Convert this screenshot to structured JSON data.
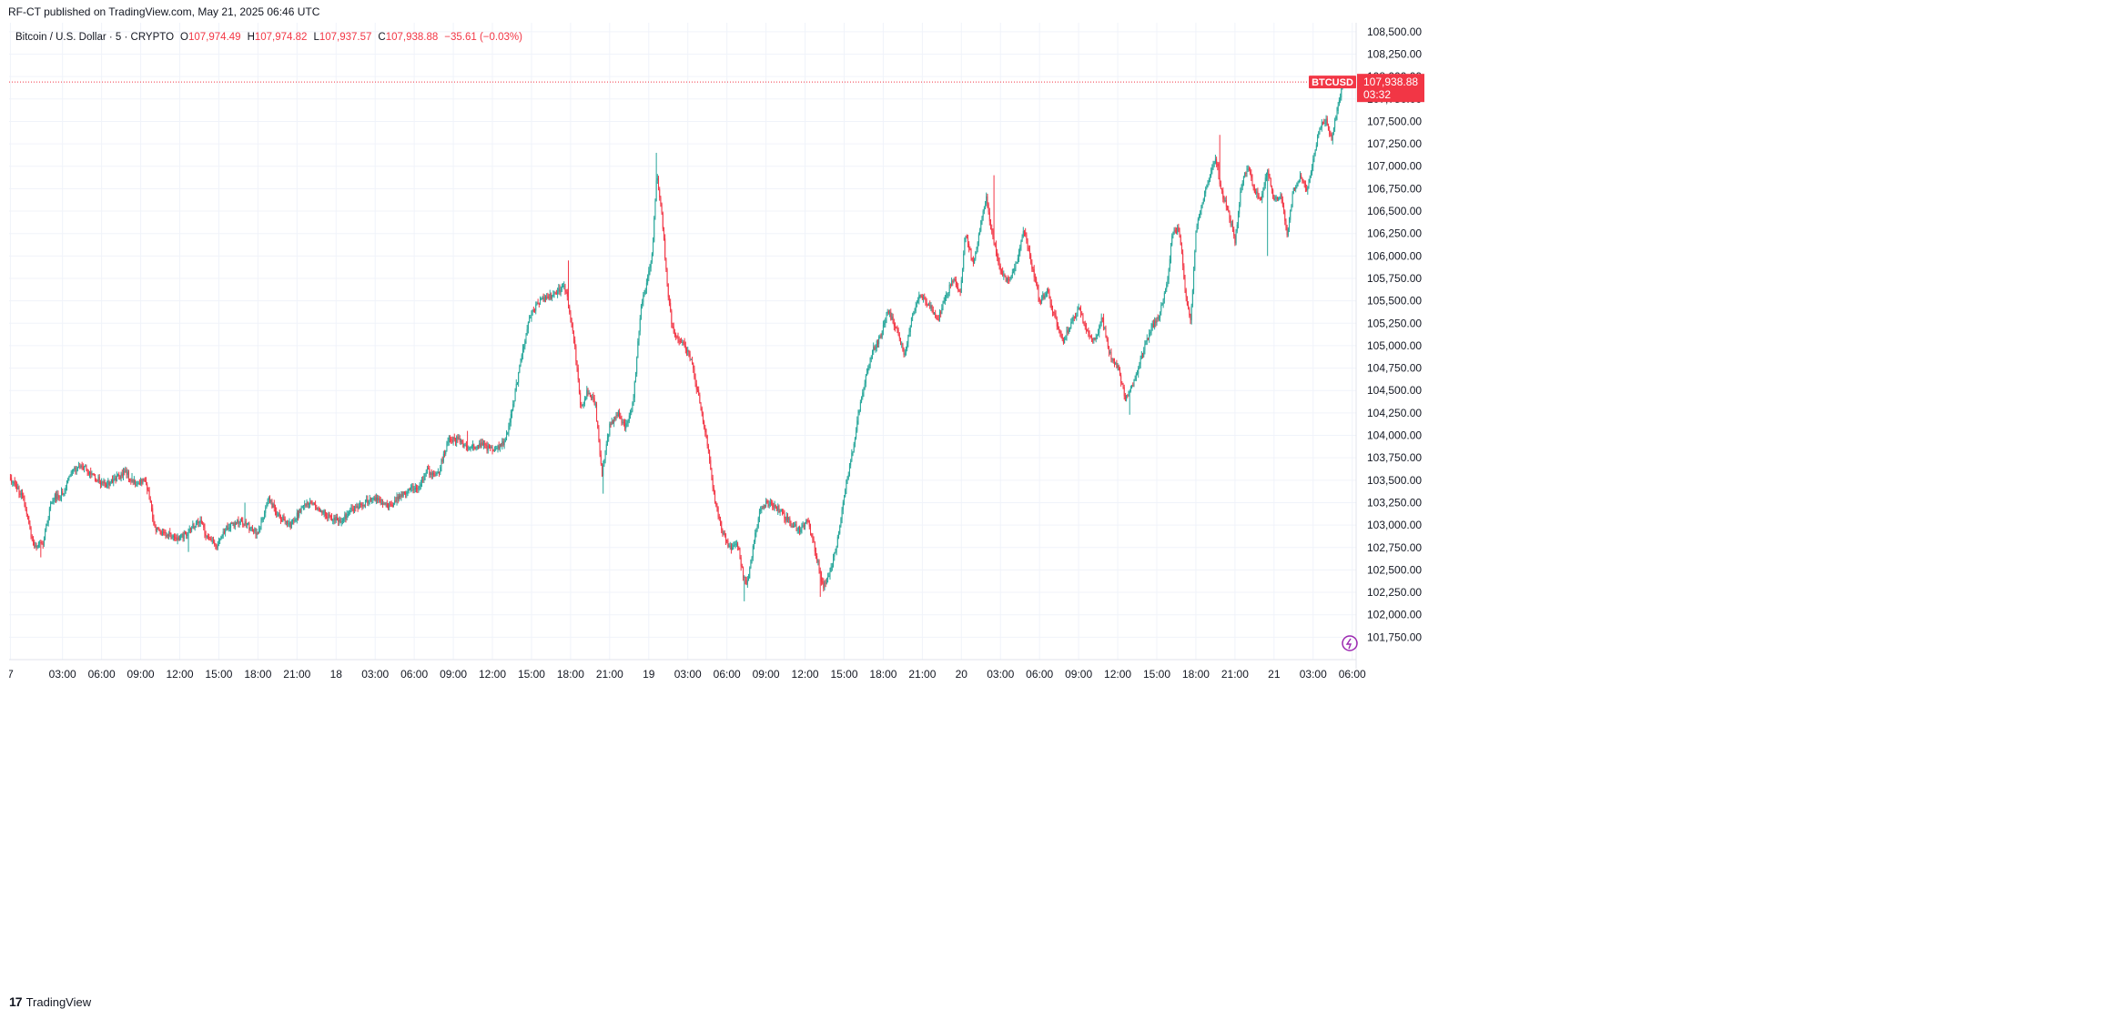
{
  "header": {
    "publish_text": "RF-CT published on TradingView.com, May 21, 2025 06:46 UTC"
  },
  "legend": {
    "instrument": "Bitcoin / U.S. Dollar · 5 · CRYPTO",
    "open_label": "O",
    "open_value": "107,974.49",
    "high_label": "H",
    "high_value": "107,974.82",
    "low_label": "L",
    "low_value": "107,937.57",
    "close_label": "C",
    "close_value": "107,938.88",
    "change_text": "−35.61 (−0.03%)"
  },
  "price_tag": {
    "symbol": "BTCUSD",
    "price": "107,938.88",
    "countdown": "03:32"
  },
  "footer": {
    "brand": "TradingView",
    "logo_icon": "tradingview-logo-icon"
  },
  "colors": {
    "up": "#26a69a",
    "down": "#f23645",
    "grid": "#f0f3fa",
    "text": "#131722"
  },
  "chart_data": {
    "type": "candlestick",
    "title": "Bitcoin / U.S. Dollar · 5 · CRYPTO",
    "ylim": [
      101500,
      108600
    ],
    "y_ticks": [
      101750,
      102000,
      102250,
      102500,
      102750,
      103000,
      103250,
      103500,
      103750,
      104000,
      104250,
      104500,
      104750,
      105000,
      105250,
      105500,
      105750,
      106000,
      106250,
      106500,
      106750,
      107000,
      107250,
      107500,
      107750,
      108000,
      108250,
      108500
    ],
    "y_tick_labels": [
      "101,750.00",
      "102,000.00",
      "102,250.00",
      "102,500.00",
      "102,750.00",
      "103,000.00",
      "103,250.00",
      "103,500.00",
      "103,750.00",
      "104,000.00",
      "104,250.00",
      "104,500.00",
      "104,750.00",
      "105,000.00",
      "105,250.00",
      "105,500.00",
      "105,750.00",
      "106,000.00",
      "106,250.00",
      "106,500.00",
      "106,750.00",
      "107,000.00",
      "107,250.00",
      "107,500.00",
      "107,750.00",
      "108,000.00",
      "108,250.00",
      "108,500.00"
    ],
    "x_labels": [
      "7",
      "03:00",
      "06:00",
      "09:00",
      "12:00",
      "15:00",
      "18:00",
      "21:00",
      "18",
      "03:00",
      "06:00",
      "09:00",
      "12:00",
      "15:00",
      "18:00",
      "21:00",
      "19",
      "03:00",
      "06:00",
      "09:00",
      "12:00",
      "15:00",
      "18:00",
      "21:00",
      "20",
      "03:00",
      "06:00",
      "09:00",
      "12:00",
      "15:00",
      "18:00",
      "21:00",
      "21",
      "03:00",
      "06:00"
    ],
    "x_hours": [
      -1,
      3,
      6,
      9,
      12,
      15,
      18,
      21,
      24,
      27,
      30,
      33,
      36,
      39,
      42,
      45,
      48,
      51,
      54,
      57,
      60,
      63,
      66,
      69,
      72,
      75,
      78,
      81,
      84,
      87,
      90,
      93,
      96,
      99,
      102
    ],
    "x_range_hours": [
      -1.1,
      102.3
    ],
    "bar_interval_minutes": 5,
    "anchors": [
      [
        -1.0,
        103530
      ],
      [
        0.0,
        103300
      ],
      [
        0.8,
        102750
      ],
      [
        1.5,
        102800
      ],
      [
        2.2,
        103300
      ],
      [
        3.0,
        103350
      ],
      [
        3.8,
        103600
      ],
      [
        4.6,
        103650
      ],
      [
        5.4,
        103550
      ],
      [
        6.2,
        103450
      ],
      [
        7.0,
        103500
      ],
      [
        7.8,
        103600
      ],
      [
        8.6,
        103450
      ],
      [
        9.4,
        103500
      ],
      [
        10.1,
        102950
      ],
      [
        11.0,
        102900
      ],
      [
        12.0,
        102850
      ],
      [
        12.8,
        102950
      ],
      [
        13.5,
        103050
      ],
      [
        14.2,
        102850
      ],
      [
        14.8,
        102750
      ],
      [
        15.5,
        102950
      ],
      [
        16.5,
        103050
      ],
      [
        17.2,
        103000
      ],
      [
        18.0,
        102900
      ],
      [
        18.8,
        103300
      ],
      [
        19.6,
        103100
      ],
      [
        20.5,
        103000
      ],
      [
        21.2,
        103150
      ],
      [
        22.0,
        103250
      ],
      [
        22.6,
        103200
      ],
      [
        23.4,
        103100
      ],
      [
        24.4,
        103050
      ],
      [
        25.4,
        103200
      ],
      [
        26.3,
        103250
      ],
      [
        27.2,
        103300
      ],
      [
        28.0,
        103200
      ],
      [
        28.8,
        103300
      ],
      [
        29.6,
        103400
      ],
      [
        30.2,
        103400
      ],
      [
        31.0,
        103600
      ],
      [
        31.8,
        103550
      ],
      [
        32.6,
        103950
      ],
      [
        33.4,
        103950
      ],
      [
        34.2,
        103850
      ],
      [
        35.0,
        103900
      ],
      [
        35.7,
        103850
      ],
      [
        36.3,
        103850
      ],
      [
        37.0,
        103950
      ],
      [
        37.6,
        104350
      ],
      [
        38.2,
        104850
      ],
      [
        38.8,
        105300
      ],
      [
        39.6,
        105500
      ],
      [
        40.4,
        105550
      ],
      [
        41.0,
        105600
      ],
      [
        41.6,
        105650
      ],
      [
        42.2,
        105150
      ],
      [
        42.8,
        104300
      ],
      [
        43.3,
        104500
      ],
      [
        43.9,
        104350
      ],
      [
        44.4,
        103550
      ],
      [
        45.0,
        104100
      ],
      [
        45.6,
        104250
      ],
      [
        46.2,
        104100
      ],
      [
        46.8,
        104350
      ],
      [
        47.4,
        105450
      ],
      [
        48.0,
        105800
      ],
      [
        48.3,
        106100
      ],
      [
        48.6,
        106900
      ],
      [
        49.0,
        106500
      ],
      [
        49.4,
        105700
      ],
      [
        49.8,
        105200
      ],
      [
        50.3,
        105050
      ],
      [
        50.8,
        105000
      ],
      [
        51.3,
        104800
      ],
      [
        51.8,
        104450
      ],
      [
        52.4,
        104000
      ],
      [
        53.0,
        103350
      ],
      [
        53.6,
        102950
      ],
      [
        54.2,
        102750
      ],
      [
        54.8,
        102800
      ],
      [
        55.3,
        102400
      ],
      [
        55.6,
        102350
      ],
      [
        56.1,
        102850
      ],
      [
        56.6,
        103200
      ],
      [
        57.2,
        103250
      ],
      [
        57.8,
        103200
      ],
      [
        58.4,
        103100
      ],
      [
        59.0,
        103000
      ],
      [
        59.6,
        102950
      ],
      [
        60.2,
        103050
      ],
      [
        60.8,
        102700
      ],
      [
        61.4,
        102300
      ],
      [
        62.0,
        102500
      ],
      [
        62.5,
        102850
      ],
      [
        63.0,
        103350
      ],
      [
        63.5,
        103700
      ],
      [
        64.0,
        104150
      ],
      [
        64.6,
        104600
      ],
      [
        65.2,
        104950
      ],
      [
        65.8,
        105100
      ],
      [
        66.3,
        105400
      ],
      [
        67.0,
        105200
      ],
      [
        67.6,
        104900
      ],
      [
        68.2,
        105300
      ],
      [
        68.8,
        105600
      ],
      [
        69.5,
        105450
      ],
      [
        70.2,
        105300
      ],
      [
        70.8,
        105550
      ],
      [
        71.4,
        105750
      ],
      [
        71.9,
        105550
      ],
      [
        72.3,
        106250
      ],
      [
        72.9,
        105900
      ],
      [
        73.4,
        106300
      ],
      [
        73.9,
        106650
      ],
      [
        74.4,
        106200
      ],
      [
        75.0,
        105850
      ],
      [
        75.6,
        105700
      ],
      [
        76.2,
        105900
      ],
      [
        76.8,
        106300
      ],
      [
        77.4,
        105900
      ],
      [
        78.0,
        105500
      ],
      [
        78.6,
        105600
      ],
      [
        79.2,
        105300
      ],
      [
        79.8,
        105050
      ],
      [
        80.4,
        105250
      ],
      [
        81.0,
        105400
      ],
      [
        81.6,
        105200
      ],
      [
        82.2,
        105050
      ],
      [
        82.8,
        105300
      ],
      [
        83.4,
        104900
      ],
      [
        84.0,
        104750
      ],
      [
        84.6,
        104400
      ],
      [
        85.0,
        104500
      ],
      [
        85.4,
        104650
      ],
      [
        86.0,
        104950
      ],
      [
        86.6,
        105200
      ],
      [
        87.2,
        105350
      ],
      [
        87.8,
        105700
      ],
      [
        88.2,
        106250
      ],
      [
        88.7,
        106300
      ],
      [
        89.2,
        105600
      ],
      [
        89.6,
        105250
      ],
      [
        90.0,
        106300
      ],
      [
        90.5,
        106600
      ],
      [
        91.0,
        106850
      ],
      [
        91.5,
        107100
      ],
      [
        92.0,
        106700
      ],
      [
        92.5,
        106500
      ],
      [
        93.0,
        106150
      ],
      [
        93.5,
        106800
      ],
      [
        94.0,
        107000
      ],
      [
        94.5,
        106700
      ],
      [
        95.0,
        106650
      ],
      [
        95.5,
        106950
      ],
      [
        96.0,
        106600
      ],
      [
        96.5,
        106700
      ],
      [
        97.0,
        106250
      ],
      [
        97.5,
        106750
      ],
      [
        98.0,
        106900
      ],
      [
        98.5,
        106750
      ],
      [
        99.0,
        107050
      ],
      [
        99.5,
        107450
      ],
      [
        100.0,
        107500
      ],
      [
        100.4,
        107300
      ],
      [
        100.8,
        107600
      ],
      [
        101.2,
        107870
      ],
      [
        101.4,
        107940
      ]
    ],
    "extreme_wicks": [
      [
        -0.9,
        103550
      ],
      [
        1.3,
        102640
      ],
      [
        8.3,
        103580
      ],
      [
        12.7,
        102700
      ],
      [
        17.0,
        103250
      ],
      [
        34.1,
        104050
      ],
      [
        41.8,
        105950
      ],
      [
        44.5,
        103350
      ],
      [
        48.6,
        107150
      ],
      [
        55.3,
        102150
      ],
      [
        61.2,
        102200
      ],
      [
        74.5,
        106900
      ],
      [
        84.9,
        104230
      ],
      [
        91.8,
        107350
      ],
      [
        95.5,
        106000
      ],
      [
        97.1,
        106250
      ]
    ]
  }
}
